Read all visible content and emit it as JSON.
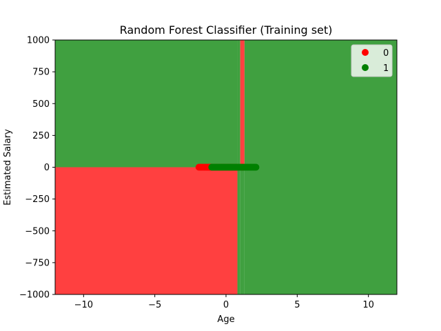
{
  "chart_data": {
    "type": "scatter",
    "title": "Random Forest Classifier (Training set)",
    "xlabel": "Age",
    "ylabel": "Estimated Salary",
    "xlim": [
      -12,
      12
    ],
    "ylim": [
      -1000,
      1000
    ],
    "xticks": [
      -10,
      -5,
      0,
      5,
      10
    ],
    "xtick_labels": [
      "−10",
      "−5",
      "0",
      "5",
      "10"
    ],
    "yticks": [
      -1000,
      -750,
      -500,
      -250,
      0,
      250,
      500,
      750,
      1000
    ],
    "ytick_labels": [
      "−1000",
      "−750",
      "−500",
      "−250",
      "0",
      "250",
      "500",
      "750",
      "1000"
    ],
    "grid": false,
    "legend_position": "top-right",
    "colors": {
      "class0_point": "#ff0000",
      "class1_point": "#008000",
      "region_red": "#ff4040",
      "region_green": "#40a040"
    },
    "decision_regions": [
      {
        "class": "1",
        "x": [
          -12,
          0.8
        ],
        "y": [
          0,
          1000
        ]
      },
      {
        "class": "0",
        "x": [
          -12,
          0.8
        ],
        "y": [
          -1000,
          0
        ]
      },
      {
        "class": "1",
        "x": [
          0.8,
          1.0
        ],
        "y": [
          -1000,
          1000
        ]
      },
      {
        "class": "0",
        "x": [
          1.0,
          1.3
        ],
        "y": [
          0,
          1000
        ]
      },
      {
        "class": "1",
        "x": [
          1.0,
          1.3
        ],
        "y": [
          -1000,
          0
        ]
      },
      {
        "class": "1",
        "x": [
          1.3,
          12
        ],
        "y": [
          -1000,
          1000
        ]
      }
    ],
    "series": [
      {
        "name": "0",
        "color": "#ff0000",
        "x": [
          -1.9,
          -1.8,
          -1.7,
          -1.6,
          -1.5,
          -1.4,
          -1.3,
          -1.2,
          -1.1,
          -1.0,
          -0.9,
          -0.8,
          -0.7,
          -0.6,
          -0.5,
          -0.4,
          -0.3,
          -0.2,
          -0.1,
          0.0,
          0.1,
          0.2,
          0.3,
          0.4,
          0.5,
          0.6,
          0.7,
          0.8,
          1.1,
          1.2
        ],
        "y": [
          0,
          0,
          0,
          0,
          0,
          0,
          0,
          0,
          0,
          0,
          0,
          0,
          0,
          0,
          0,
          0,
          0,
          0,
          0,
          0,
          0,
          0,
          0,
          0,
          0,
          0,
          0,
          0,
          0,
          0
        ]
      },
      {
        "name": "1",
        "color": "#008000",
        "x": [
          -1.0,
          -0.9,
          -0.8,
          -0.7,
          -0.6,
          -0.5,
          -0.4,
          -0.3,
          -0.2,
          -0.1,
          0.0,
          0.1,
          0.2,
          0.3,
          0.4,
          0.5,
          0.6,
          0.7,
          0.8,
          0.9,
          1.0,
          1.1,
          1.2,
          1.3,
          1.4,
          1.5,
          1.6,
          1.7,
          1.8,
          1.9,
          2.0,
          2.1
        ],
        "y": [
          0,
          0,
          0,
          0,
          0,
          0,
          0,
          0,
          0,
          0,
          0,
          0,
          0,
          0,
          0,
          0,
          0,
          0,
          0,
          0,
          0,
          0,
          0,
          0,
          0,
          0,
          0,
          0,
          0,
          0,
          0,
          0
        ]
      }
    ]
  }
}
